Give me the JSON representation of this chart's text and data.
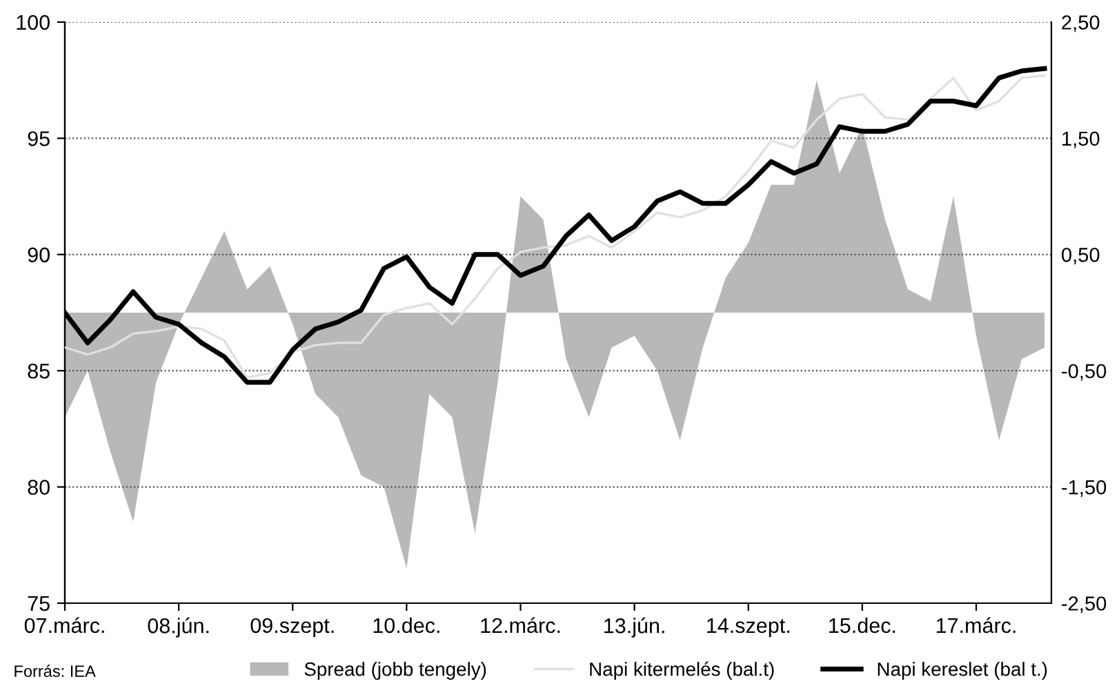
{
  "chart_data": {
    "type": "line",
    "categories": [
      "07.márc.",
      null,
      null,
      null,
      null,
      "08.jún.",
      null,
      null,
      null,
      null,
      "09.szept.",
      null,
      null,
      null,
      null,
      "10.dec.",
      null,
      null,
      null,
      null,
      "12.márc.",
      null,
      null,
      null,
      null,
      "13.jún.",
      null,
      null,
      null,
      null,
      "14.szept.",
      null,
      null,
      null,
      null,
      "15.dec.",
      null,
      null,
      null,
      null,
      "17.márc.",
      null,
      null,
      null
    ],
    "series": [
      {
        "name": "Spread (jobb tengely)",
        "type": "area",
        "axis": "y2",
        "color": "#b8b8b8",
        "values": [
          -0.9,
          -0.5,
          -1.2,
          -1.8,
          -0.6,
          -0.1,
          0.3,
          0.7,
          0.2,
          0.4,
          -0.1,
          -0.7,
          -0.9,
          -1.4,
          -1.5,
          -2.2,
          -0.7,
          -0.9,
          -1.9,
          -0.6,
          1.0,
          0.8,
          -0.4,
          -0.9,
          -0.3,
          -0.2,
          -0.5,
          -1.1,
          -0.3,
          0.3,
          0.6,
          1.1,
          1.1,
          2.0,
          1.2,
          1.6,
          0.8,
          0.2,
          0.1,
          1.0,
          -0.2,
          -1.1,
          -0.4,
          -0.3
        ]
      },
      {
        "name": "Napi kitermelés (bal.t)",
        "color": "#e0e0e0",
        "values": [
          86.0,
          85.7,
          86.0,
          86.6,
          86.7,
          86.9,
          86.8,
          86.3,
          84.7,
          84.9,
          85.8,
          86.1,
          86.2,
          86.2,
          87.4,
          87.7,
          87.9,
          87.0,
          88.1,
          89.4,
          90.1,
          90.3,
          90.4,
          90.8,
          90.3,
          91.0,
          91.8,
          91.6,
          91.9,
          92.5,
          93.6,
          94.9,
          94.6,
          95.8,
          96.7,
          96.9,
          95.9,
          95.8,
          96.7,
          97.6,
          96.2,
          96.6,
          97.6,
          97.7
        ]
      },
      {
        "name": "Napi kereslet (bal t.)",
        "color": "#000000",
        "values": [
          87.5,
          86.2,
          87.2,
          88.4,
          87.3,
          87.0,
          86.2,
          85.6,
          84.5,
          84.5,
          85.9,
          86.8,
          87.1,
          87.6,
          89.4,
          89.9,
          88.6,
          87.9,
          90.0,
          90.0,
          89.1,
          89.5,
          90.8,
          91.7,
          90.6,
          91.2,
          92.3,
          92.7,
          92.2,
          92.2,
          93.0,
          94.0,
          93.5,
          93.9,
          95.5,
          95.3,
          95.3,
          95.6,
          96.6,
          96.6,
          96.4,
          97.6,
          97.9,
          98.0
        ]
      }
    ],
    "ylim": [
      75,
      100
    ],
    "yticks": [
      75,
      80,
      85,
      90,
      95,
      100
    ],
    "y2lim": [
      -2.5,
      2.5
    ],
    "y2ticks": [
      {
        "value": -2.5,
        "label": "-2,50"
      },
      {
        "value": -1.5,
        "label": "-1,50"
      },
      {
        "value": -0.5,
        "label": "-0,50"
      },
      {
        "value": 0.5,
        "label": "0,50"
      },
      {
        "value": 1.5,
        "label": "1,50"
      },
      {
        "value": 2.5,
        "label": "2,50"
      }
    ],
    "grid": "y",
    "legend": "bottom",
    "marker": "none",
    "line_style": "solid",
    "annotations": [
      "Forrás: IEA"
    ]
  }
}
